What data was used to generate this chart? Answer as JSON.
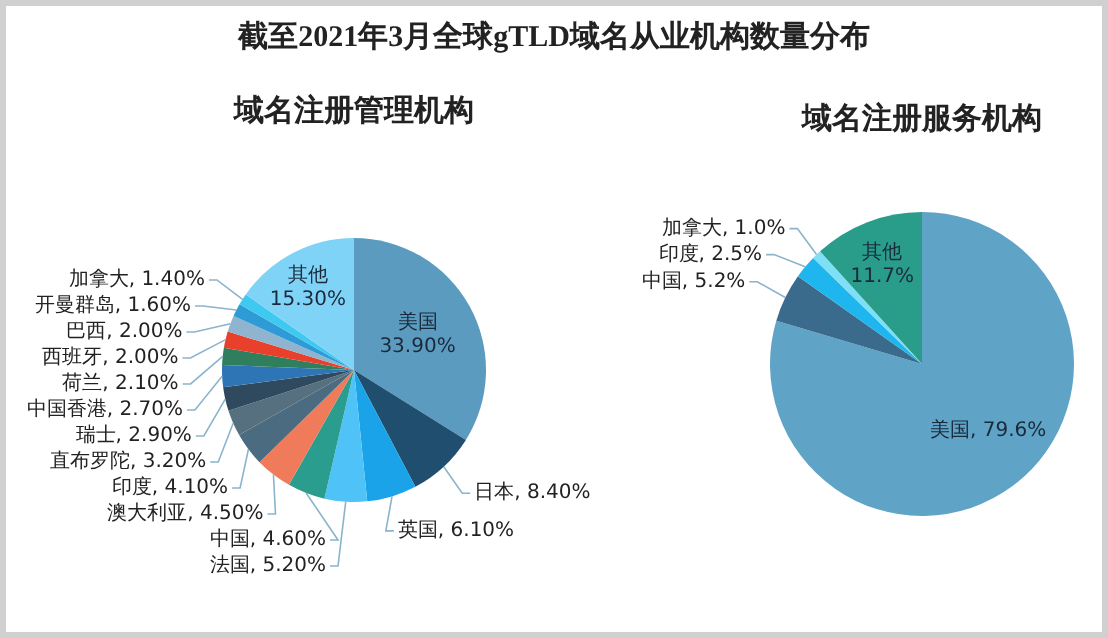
{
  "chart_data": [
    {
      "type": "pie",
      "title": "截至2021年3月全球gTLD域名从业机构数量分布",
      "subtitle": "域名注册管理机构",
      "categories": [
        "美国",
        "日本",
        "英国",
        "法国",
        "中国",
        "澳大利亚",
        "印度",
        "直布罗陀",
        "瑞士",
        "中国香港",
        "荷兰",
        "西班牙",
        "巴西",
        "开曼群岛",
        "加拿大",
        "其他"
      ],
      "values": [
        33.9,
        8.4,
        6.1,
        5.2,
        4.6,
        4.5,
        4.1,
        3.2,
        2.9,
        2.7,
        2.1,
        2.0,
        2.0,
        1.6,
        1.4,
        15.3
      ],
      "value_labels": [
        "33.90%",
        "8.40%",
        "6.10%",
        "5.20%",
        "4.60%",
        "4.50%",
        "4.10%",
        "3.20%",
        "2.90%",
        "2.70%",
        "2.10%",
        "2.00%",
        "2.00%",
        "1.60%",
        "1.40%",
        "15.30%"
      ],
      "colors": [
        "#5b9bc0",
        "#1f4e6e",
        "#1aa3e8",
        "#4fc3f7",
        "#2a9d8f",
        "#f07b5a",
        "#4a6b80",
        "#56707f",
        "#2f4a5e",
        "#2e75b6",
        "#2f7f5f",
        "#e8402a",
        "#8fb4cf",
        "#2e9ad6",
        "#3ec9f0",
        "#7fd3f7"
      ]
    },
    {
      "type": "pie",
      "subtitle": "域名注册服务机构",
      "categories": [
        "美国",
        "中国",
        "印度",
        "加拿大",
        "其他"
      ],
      "values": [
        79.6,
        5.2,
        2.5,
        1.0,
        11.7
      ],
      "value_labels": [
        "79.6%",
        "5.2%",
        "2.5%",
        "1.0%",
        "11.7%"
      ],
      "colors": [
        "#5fa3c7",
        "#3b6b8c",
        "#1fb6ef",
        "#7de0f7",
        "#2a9d8a"
      ]
    }
  ]
}
